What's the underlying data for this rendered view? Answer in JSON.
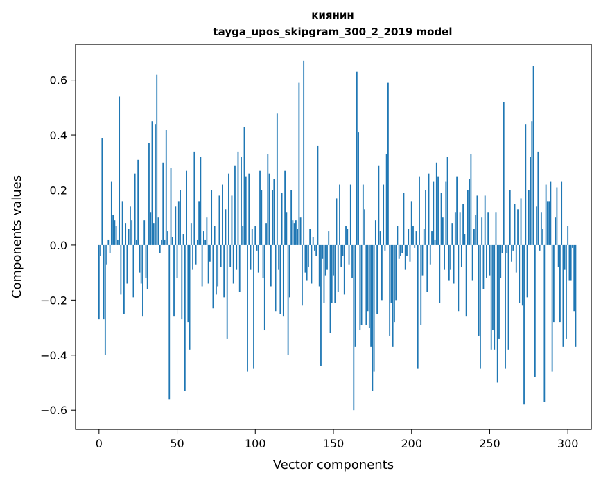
{
  "chart_data": {
    "type": "bar",
    "title": "киянин",
    "subtitle": "tayga_upos_skipgram_300_2_2019 model",
    "xlabel": "Vector components",
    "ylabel": "Components values",
    "xlim": [
      -15,
      315
    ],
    "ylim": [
      -0.67,
      0.73
    ],
    "xticks": [
      0,
      50,
      100,
      150,
      200,
      250,
      300
    ],
    "xtick_labels": [
      "0",
      "50",
      "100",
      "150",
      "200",
      "250",
      "300"
    ],
    "yticks": [
      -0.6,
      -0.4,
      -0.2,
      0.0,
      0.2,
      0.4,
      0.6
    ],
    "ytick_labels": [
      "−0.6",
      "−0.4",
      "−0.2",
      "0.0",
      "0.2",
      "0.4",
      "0.6"
    ],
    "bar_color": "#1f77b4",
    "series": [
      {
        "name": "киянин",
        "values": [
          -0.27,
          -0.04,
          0.39,
          -0.27,
          -0.4,
          -0.07,
          0.02,
          -0.03,
          0.23,
          0.11,
          0.09,
          0.07,
          0.02,
          0.54,
          -0.18,
          0.16,
          -0.25,
          0.08,
          -0.14,
          0.06,
          0.14,
          0.09,
          -0.19,
          0.26,
          0.02,
          0.31,
          -0.1,
          -0.14,
          -0.26,
          0.09,
          -0.12,
          -0.16,
          0.37,
          0.12,
          0.45,
          0.08,
          0.44,
          0.62,
          0.1,
          -0.03,
          0.02,
          0.3,
          0.02,
          0.42,
          0.05,
          -0.56,
          0.28,
          0.03,
          -0.26,
          0.14,
          -0.12,
          0.16,
          0.2,
          -0.27,
          0.04,
          -0.53,
          0.27,
          -0.28,
          -0.38,
          0.08,
          -0.09,
          0.34,
          -0.07,
          0.02,
          0.16,
          0.32,
          -0.15,
          0.05,
          0.02,
          0.1,
          -0.14,
          -0.06,
          0.2,
          -0.23,
          0.07,
          -0.18,
          -0.15,
          0.18,
          -0.08,
          0.22,
          -0.19,
          0.13,
          -0.34,
          0.26,
          -0.08,
          0.18,
          -0.14,
          0.29,
          -0.09,
          0.34,
          -0.17,
          0.32,
          0.07,
          0.43,
          0.25,
          -0.46,
          0.26,
          -0.09,
          0.06,
          -0.45,
          0.07,
          -0.02,
          -0.1,
          0.27,
          0.2,
          -0.12,
          -0.31,
          0.08,
          0.33,
          0.26,
          -0.15,
          0.2,
          0.24,
          -0.24,
          0.48,
          -0.09,
          -0.25,
          0.19,
          -0.26,
          0.27,
          0.12,
          -0.4,
          -0.19,
          0.2,
          0.09,
          0.08,
          0.09,
          0.06,
          0.59,
          0.1,
          -0.22,
          0.67,
          -0.1,
          -0.13,
          -0.08,
          0.06,
          -0.14,
          0.03,
          -0.02,
          -0.04,
          0.36,
          -0.15,
          -0.44,
          -0.05,
          -0.21,
          -0.11,
          -0.09,
          0.05,
          -0.32,
          -0.21,
          -0.11,
          -0.21,
          0.17,
          -0.17,
          0.22,
          -0.08,
          -0.04,
          -0.18,
          0.07,
          0.06,
          -0.07,
          0.22,
          -0.12,
          -0.6,
          -0.37,
          0.63,
          0.41,
          -0.31,
          -0.29,
          0.22,
          0.13,
          -0.29,
          -0.24,
          -0.3,
          -0.37,
          -0.53,
          -0.46,
          0.09,
          -0.25,
          0.29,
          0.05,
          -0.2,
          0.22,
          -0.02,
          0.33,
          0.59,
          -0.33,
          -0.21,
          -0.37,
          -0.28,
          -0.2,
          0.07,
          -0.05,
          -0.04,
          -0.03,
          0.19,
          -0.09,
          -0.04,
          0.06,
          -0.06,
          0.16,
          0.07,
          -0.01,
          0.05,
          -0.45,
          0.25,
          -0.29,
          -0.11,
          0.06,
          0.2,
          -0.17,
          0.26,
          -0.07,
          0.05,
          0.23,
          0.02,
          0.3,
          0.25,
          -0.21,
          0.19,
          0.1,
          -0.09,
          0.23,
          0.32,
          -0.13,
          -0.09,
          0.08,
          -0.14,
          0.12,
          0.25,
          -0.24,
          0.12,
          -0.08,
          0.15,
          0.04,
          -0.26,
          0.2,
          0.24,
          0.33,
          -0.13,
          0.06,
          0.11,
          0.18,
          -0.33,
          -0.45,
          0.1,
          -0.16,
          0.18,
          -0.12,
          0.12,
          -0.11,
          -0.38,
          -0.31,
          -0.38,
          0.12,
          -0.5,
          -0.34,
          -0.12,
          -0.03,
          0.52,
          -0.45,
          -0.03,
          -0.38,
          0.2,
          -0.06,
          -0.02,
          0.15,
          -0.1,
          0.13,
          -0.21,
          0.17,
          -0.22,
          -0.58,
          0.44,
          -0.19,
          0.2,
          0.32,
          0.45,
          0.65,
          -0.48,
          0.14,
          0.34,
          -0.02,
          0.12,
          0.06,
          -0.57,
          0.22,
          0.16,
          0.16,
          0.23,
          -0.46,
          -0.28,
          0.1,
          0.21,
          -0.08,
          -0.28,
          0.23,
          -0.37,
          -0.09,
          -0.34,
          0.07,
          -0.13,
          -0.13,
          -0.01,
          -0.24,
          -0.37
        ]
      }
    ]
  }
}
